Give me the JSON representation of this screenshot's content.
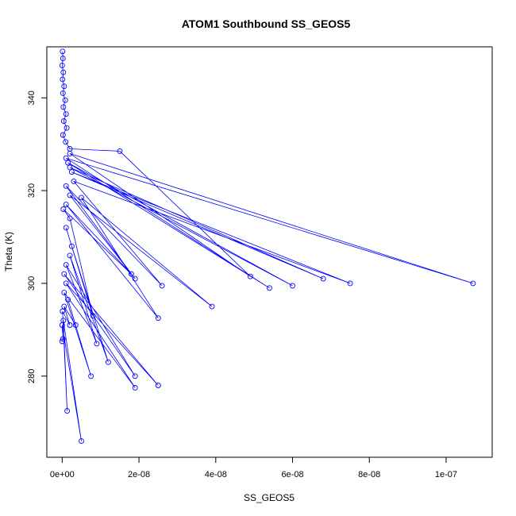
{
  "chart_data": {
    "type": "scatter",
    "title": "ATOM1 Southbound SS_GEOS5",
    "xlabel": "SS_GEOS5",
    "ylabel": "Theta (K)",
    "xlim": [
      -4e-09,
      1.12e-07
    ],
    "ylim": [
      262.5,
      351
    ],
    "grid": false,
    "legend": "none",
    "point_style": "open-circle-with-connecting-lines",
    "color": "#0000ff",
    "xticks": [
      {
        "value": 0,
        "label": "0e+00"
      },
      {
        "value": 2e-08,
        "label": "2e-08"
      },
      {
        "value": 4e-08,
        "label": "4e-08"
      },
      {
        "value": 6e-08,
        "label": "6e-08"
      },
      {
        "value": 8e-08,
        "label": "8e-08"
      },
      {
        "value": 1e-07,
        "label": "1e-07"
      }
    ],
    "yticks": [
      {
        "value": 280,
        "label": "280"
      },
      {
        "value": 300,
        "label": "300"
      },
      {
        "value": 320,
        "label": "320"
      },
      {
        "value": 340,
        "label": "340"
      }
    ],
    "points": [
      [
        1e-10,
        350.0
      ],
      [
        2e-10,
        348.5
      ],
      [
        0.0,
        347.0
      ],
      [
        3e-10,
        345.5
      ],
      [
        1e-10,
        344.0
      ],
      [
        5e-10,
        342.5
      ],
      [
        2e-10,
        341.0
      ],
      [
        8e-10,
        339.5
      ],
      [
        3e-10,
        338.0
      ],
      [
        1e-09,
        336.5
      ],
      [
        4e-10,
        335.0
      ],
      [
        1.2e-09,
        333.5
      ],
      [
        2e-10,
        332.0
      ],
      [
        9e-10,
        330.5
      ],
      [
        2e-09,
        329.0
      ],
      [
        1.5e-08,
        328.5
      ],
      [
        4.9e-08,
        301.5
      ],
      [
        2e-09,
        328.0
      ],
      [
        1.07e-07,
        300.0
      ],
      [
        1e-09,
        327.0
      ],
      [
        5.4e-08,
        299.0
      ],
      [
        1.5e-09,
        326.0
      ],
      [
        6e-08,
        299.5
      ],
      [
        2e-09,
        325.0
      ],
      [
        6.8e-08,
        301.0
      ],
      [
        2.5e-09,
        324.0
      ],
      [
        7.5e-08,
        300.0
      ],
      [
        3e-09,
        322.0
      ],
      [
        2.6e-08,
        299.5
      ],
      [
        1e-09,
        321.0
      ],
      [
        1.9e-08,
        301.0
      ],
      [
        2e-09,
        319.0
      ],
      [
        3.9e-08,
        295.0
      ],
      [
        5e-09,
        318.5
      ],
      [
        2.5e-08,
        292.5
      ],
      [
        1e-09,
        317.0
      ],
      [
        1.8e-08,
        302.0
      ],
      [
        3e-10,
        316.0
      ],
      [
        2e-09,
        314.0
      ],
      [
        8e-09,
        293.0
      ],
      [
        1e-09,
        312.0
      ],
      [
        2.5e-09,
        308.0
      ],
      [
        1.2e-08,
        283.0
      ],
      [
        2e-09,
        306.0
      ],
      [
        9e-09,
        287.0
      ],
      [
        1e-09,
        304.0
      ],
      [
        1.9e-08,
        280.0
      ],
      [
        5e-10,
        302.0
      ],
      [
        2.5e-08,
        278.0
      ],
      [
        1e-09,
        300.0
      ],
      [
        1.9e-08,
        277.5
      ],
      [
        5e-10,
        298.0
      ],
      [
        7.5e-09,
        280.0
      ],
      [
        1.5e-09,
        296.5
      ],
      [
        3.5e-09,
        291.0
      ],
      [
        5e-10,
        295.0
      ],
      [
        2e-09,
        291.0
      ],
      [
        1e-10,
        294.0
      ],
      [
        1.3e-09,
        272.5
      ],
      [
        3e-10,
        292.0
      ],
      [
        5e-09,
        266.0
      ],
      [
        0.0,
        291.0
      ],
      [
        2e-10,
        288.0
      ],
      [
        0.0,
        287.5
      ]
    ]
  }
}
